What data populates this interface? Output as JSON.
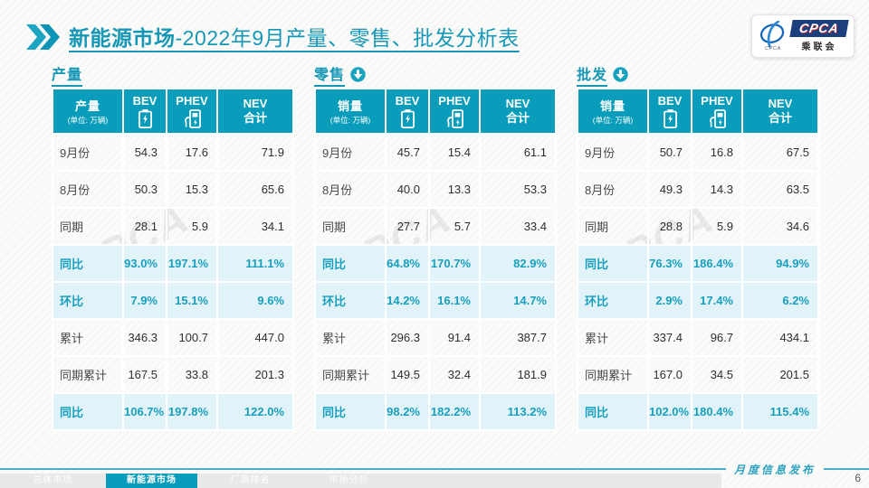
{
  "header": {
    "title_bold": "新能源市场",
    "title_rest": "-2022年9月产量、零售、批发分析表"
  },
  "logo": {
    "acronym": "CPCA",
    "chinese": "乘联会",
    "icon_caption": "CPCA"
  },
  "colors": {
    "header_teal": "#0A9DBB",
    "title_teal": "#1697B6",
    "highlight_bg": "#E1F3F9",
    "highlight_text": "#189FBD",
    "logo_navy": "#1B3E7D"
  },
  "tables": [
    {
      "id": "production",
      "section_title": "产量",
      "arrow": false,
      "header": {
        "measure": "产量",
        "unit": "(单位: 万辆)",
        "bev": "BEV",
        "phev": "PHEV",
        "nev_line1": "NEV",
        "nev_line2": "合计"
      },
      "rows": [
        {
          "label": "9月份",
          "bev": "54.3",
          "phev": "17.6",
          "nev": "71.9",
          "highlight": false
        },
        {
          "label": "8月份",
          "bev": "50.3",
          "phev": "15.3",
          "nev": "65.6",
          "highlight": false
        },
        {
          "label": "同期",
          "bev": "28.1",
          "phev": "5.9",
          "nev": "34.1",
          "highlight": false
        },
        {
          "label": "同比",
          "bev": "93.0%",
          "phev": "197.1%",
          "nev": "111.1%",
          "highlight": true
        },
        {
          "label": "环比",
          "bev": "7.9%",
          "phev": "15.1%",
          "nev": "9.6%",
          "highlight": true
        },
        {
          "label": "累计",
          "bev": "346.3",
          "phev": "100.7",
          "nev": "447.0",
          "highlight": false
        },
        {
          "label": "同期累计",
          "bev": "167.5",
          "phev": "33.8",
          "nev": "201.3",
          "highlight": false
        },
        {
          "label": "同比",
          "bev": "106.7%",
          "phev": "197.8%",
          "nev": "122.0%",
          "highlight": true
        }
      ]
    },
    {
      "id": "retail",
      "section_title": "零售",
      "arrow": true,
      "header": {
        "measure": "销量",
        "unit": "(单位: 万辆)",
        "bev": "BEV",
        "phev": "PHEV",
        "nev_line1": "NEV",
        "nev_line2": "合计"
      },
      "rows": [
        {
          "label": "9月份",
          "bev": "45.7",
          "phev": "15.4",
          "nev": "61.1",
          "highlight": false
        },
        {
          "label": "8月份",
          "bev": "40.0",
          "phev": "13.3",
          "nev": "53.3",
          "highlight": false
        },
        {
          "label": "同期",
          "bev": "27.7",
          "phev": "5.7",
          "nev": "33.4",
          "highlight": false
        },
        {
          "label": "同比",
          "bev": "64.8%",
          "phev": "170.7%",
          "nev": "82.9%",
          "highlight": true
        },
        {
          "label": "环比",
          "bev": "14.2%",
          "phev": "16.1%",
          "nev": "14.7%",
          "highlight": true
        },
        {
          "label": "累计",
          "bev": "296.3",
          "phev": "91.4",
          "nev": "387.7",
          "highlight": false
        },
        {
          "label": "同期累计",
          "bev": "149.5",
          "phev": "32.4",
          "nev": "181.9",
          "highlight": false
        },
        {
          "label": "同比",
          "bev": "98.2%",
          "phev": "182.2%",
          "nev": "113.2%",
          "highlight": true
        }
      ]
    },
    {
      "id": "wholesale",
      "section_title": "批发",
      "arrow": true,
      "header": {
        "measure": "销量",
        "unit": "(单位: 万辆)",
        "bev": "BEV",
        "phev": "PHEV",
        "nev_line1": "NEV",
        "nev_line2": "合计"
      },
      "rows": [
        {
          "label": "9月份",
          "bev": "50.7",
          "phev": "16.8",
          "nev": "67.5",
          "highlight": false
        },
        {
          "label": "8月份",
          "bev": "49.3",
          "phev": "14.3",
          "nev": "63.5",
          "highlight": false
        },
        {
          "label": "同期",
          "bev": "28.8",
          "phev": "5.9",
          "nev": "34.6",
          "highlight": false
        },
        {
          "label": "同比",
          "bev": "76.3%",
          "phev": "186.4%",
          "nev": "94.9%",
          "highlight": true
        },
        {
          "label": "环比",
          "bev": "2.9%",
          "phev": "17.4%",
          "nev": "6.2%",
          "highlight": true
        },
        {
          "label": "累计",
          "bev": "337.4",
          "phev": "96.7",
          "nev": "434.1",
          "highlight": false
        },
        {
          "label": "同期累计",
          "bev": "167.0",
          "phev": "34.5",
          "nev": "201.5",
          "highlight": false
        },
        {
          "label": "同比",
          "bev": "102.0%",
          "phev": "180.4%",
          "nev": "115.4%",
          "highlight": true
        }
      ]
    }
  ],
  "footer": {
    "note": "月度信息发布",
    "page_number": "6",
    "tabs": [
      {
        "id": "overall-market",
        "label": "总体市场",
        "active": false
      },
      {
        "id": "new-energy-market",
        "label": "新能源市场",
        "active": true
      },
      {
        "id": "oem-ranking",
        "label": "厂商排名",
        "active": false
      },
      {
        "id": "market-analysis",
        "label": "市场分析",
        "active": false
      }
    ]
  }
}
